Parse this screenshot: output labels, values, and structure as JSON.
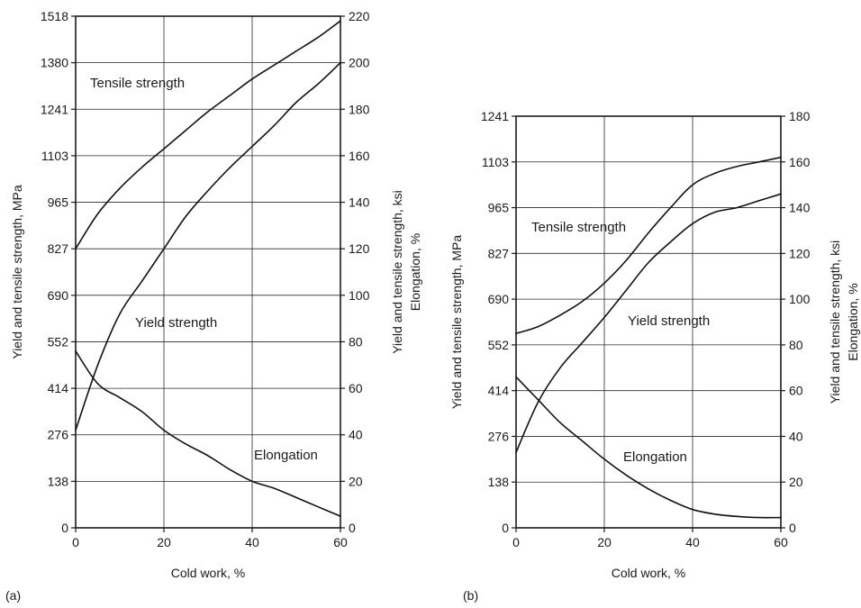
{
  "chart_data": [
    {
      "type": "line",
      "panel_label": "(a)",
      "xlabel": "Cold work, %",
      "ylabel_left": "Yield and tensile strength, MPa",
      "ylabel_right": "Yield and tensile strength, ksi\nElongation, %",
      "xlim": [
        0,
        60
      ],
      "ylim_left": [
        0,
        1518
      ],
      "ylim_right": [
        0,
        220
      ],
      "x_ticks": [
        "0",
        "20",
        "40",
        "60"
      ],
      "y_ticks_left": [
        "0",
        "138",
        "276",
        "414",
        "552",
        "690",
        "827",
        "965",
        "1103",
        "1241",
        "1380",
        "1518"
      ],
      "y_ticks_right": [
        "0",
        "20",
        "40",
        "60",
        "80",
        "100",
        "120",
        "140",
        "160",
        "180",
        "200",
        "220"
      ],
      "grid": true,
      "series": [
        {
          "name": "Tensile strength",
          "x": [
            0,
            5,
            10,
            15,
            20,
            25,
            30,
            35,
            40,
            45,
            50,
            55,
            60
          ],
          "y": [
            120,
            135,
            146,
            155,
            163,
            171,
            179,
            186,
            193,
            199,
            205,
            211,
            218
          ]
        },
        {
          "name": "Yield strength",
          "x": [
            0,
            5,
            10,
            15,
            20,
            25,
            30,
            35,
            40,
            45,
            50,
            55,
            60
          ],
          "y": [
            42,
            70,
            92,
            106,
            120,
            134,
            145,
            155,
            164,
            173,
            183,
            191,
            200
          ]
        },
        {
          "name": "Elongation",
          "x": [
            0,
            5,
            10,
            15,
            20,
            25,
            30,
            35,
            40,
            45,
            50,
            55,
            60
          ],
          "y": [
            76,
            62,
            56,
            50,
            42,
            36,
            31,
            25,
            20,
            17,
            13,
            9,
            5
          ]
        }
      ]
    },
    {
      "type": "line",
      "panel_label": "(b)",
      "xlabel": "Cold work, %",
      "ylabel_left": "Yield and tensile strength, MPa",
      "ylabel_right": "Yield and tensile strength, ksi\nElongation, %",
      "xlim": [
        0,
        60
      ],
      "ylim_left": [
        0,
        1241
      ],
      "ylim_right": [
        0,
        180
      ],
      "x_ticks": [
        "0",
        "20",
        "40",
        "60"
      ],
      "y_ticks_left": [
        "0",
        "138",
        "276",
        "414",
        "552",
        "690",
        "827",
        "965",
        "1103",
        "1241"
      ],
      "y_ticks_right": [
        "0",
        "20",
        "40",
        "60",
        "80",
        "100",
        "120",
        "140",
        "160",
        "180"
      ],
      "grid": true,
      "series": [
        {
          "name": "Tensile strength",
          "x": [
            0,
            5,
            10,
            15,
            20,
            25,
            30,
            35,
            40,
            45,
            50,
            55,
            60
          ],
          "y": [
            85,
            88,
            93,
            99,
            107,
            117,
            129,
            140,
            150,
            155,
            158,
            160,
            162
          ]
        },
        {
          "name": "Yield strength",
          "x": [
            0,
            5,
            10,
            15,
            20,
            25,
            30,
            35,
            40,
            45,
            50,
            55,
            60
          ],
          "y": [
            33,
            55,
            70,
            81,
            92,
            104,
            116,
            125,
            133,
            138,
            140,
            143,
            146
          ]
        },
        {
          "name": "Elongation",
          "x": [
            0,
            5,
            10,
            15,
            20,
            25,
            30,
            35,
            40,
            45,
            50,
            55,
            60
          ],
          "y": [
            66,
            56,
            46,
            38,
            30,
            23,
            17,
            12,
            8,
            6,
            5,
            4.5,
            4.5
          ]
        }
      ]
    }
  ]
}
